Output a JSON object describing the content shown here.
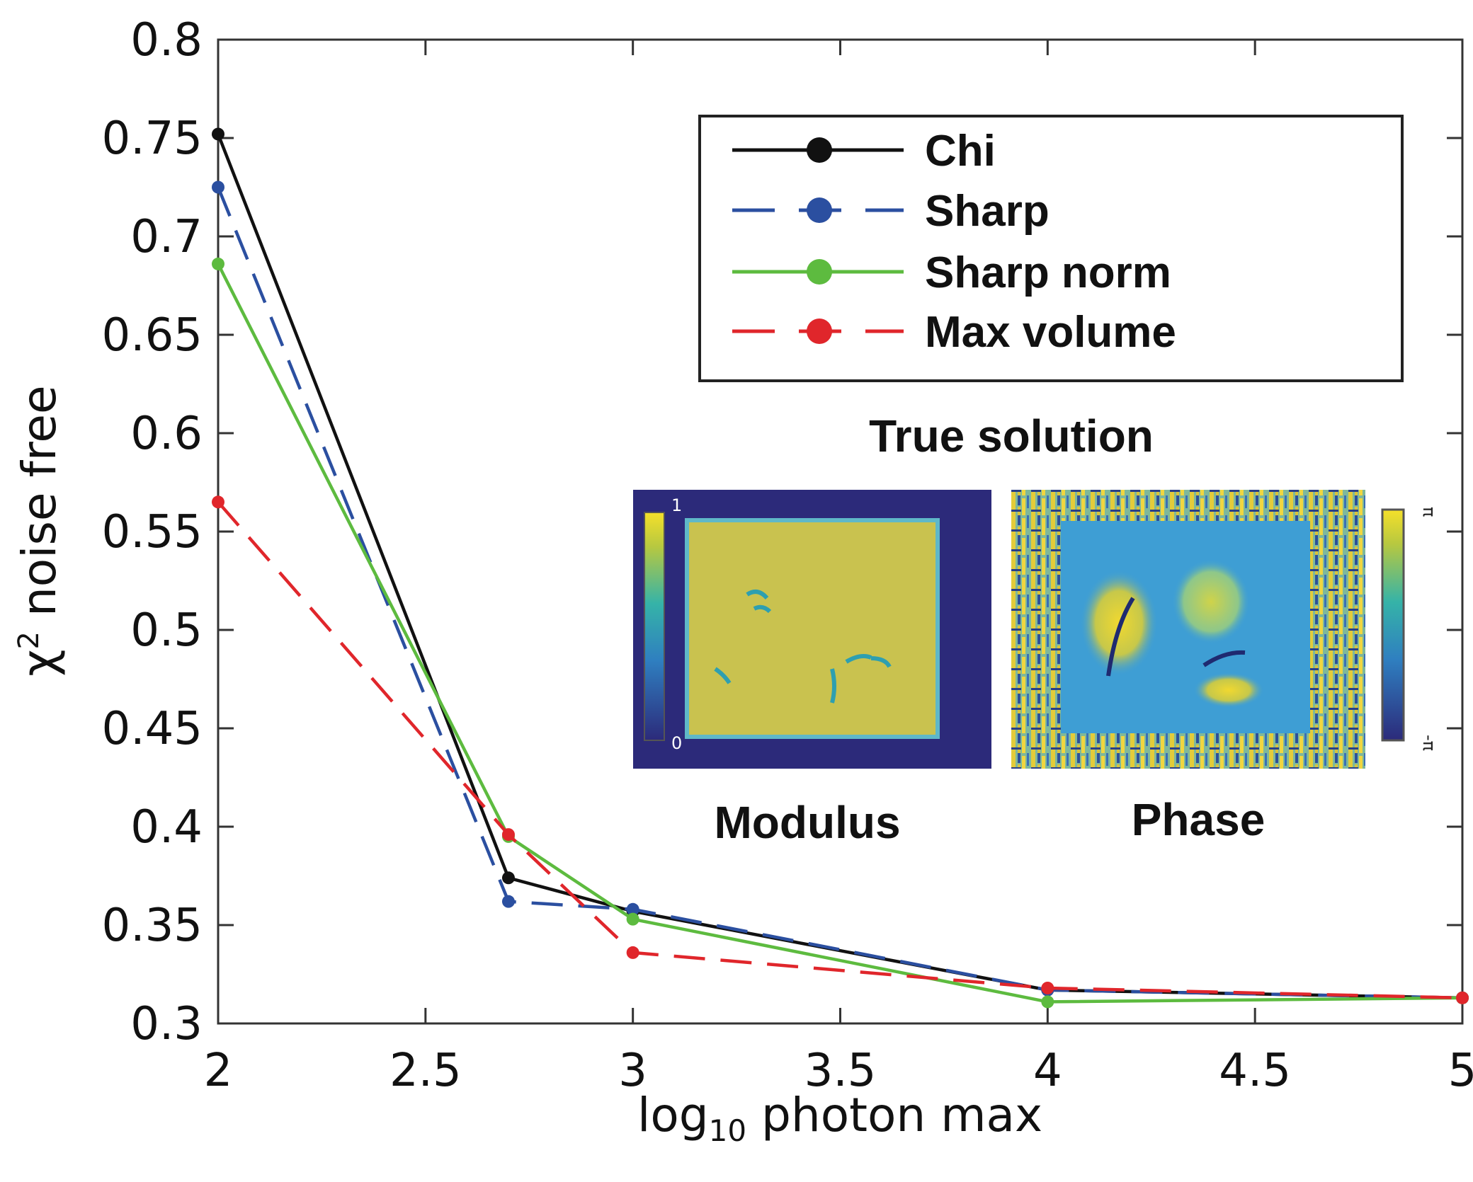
{
  "chart_data": {
    "type": "line",
    "xlabel": {
      "base": "log",
      "sub": "10",
      "rest": " photon max"
    },
    "ylabel": {
      "sym": "χ",
      "sup": "2",
      "rest": " noise free"
    },
    "xlim": [
      2,
      5
    ],
    "ylim": [
      0.3,
      0.8
    ],
    "xticks": [
      2,
      2.5,
      3,
      3.5,
      4,
      4.5,
      5
    ],
    "yticks": [
      0.3,
      0.35,
      0.4,
      0.45,
      0.5,
      0.55,
      0.6,
      0.65,
      0.7,
      0.75,
      0.8
    ],
    "xtick_labels": [
      "2",
      "2.5",
      "3",
      "3.5",
      "4",
      "4.5",
      "5"
    ],
    "ytick_labels": [
      "0.3",
      "0.35",
      "0.4",
      "0.45",
      "0.5",
      "0.55",
      "0.6",
      "0.65",
      "0.7",
      "0.75",
      "0.8"
    ],
    "grid": false,
    "legend_position": "top-right",
    "series": [
      {
        "name": "Chi",
        "color": "#111111",
        "dash": "solid",
        "x": [
          2,
          2.7,
          3,
          4,
          5
        ],
        "y": [
          0.752,
          0.374,
          0.357,
          0.317,
          0.313
        ]
      },
      {
        "name": "Sharp",
        "color": "#2B4FA0",
        "dash": "dashed",
        "x": [
          2,
          2.7,
          3,
          4,
          5
        ],
        "y": [
          0.725,
          0.362,
          0.358,
          0.317,
          0.313
        ]
      },
      {
        "name": "Sharp norm",
        "color": "#5DBB3F",
        "dash": "solid",
        "x": [
          2,
          2.7,
          3,
          4,
          5
        ],
        "y": [
          0.686,
          0.395,
          0.353,
          0.311,
          0.313
        ]
      },
      {
        "name": "Max volume",
        "color": "#E0262B",
        "dash": "dashed",
        "x": [
          2,
          2.7,
          3,
          4,
          5
        ],
        "y": [
          0.565,
          0.396,
          0.336,
          0.318,
          0.313
        ]
      }
    ]
  },
  "inset": {
    "title": "True solution",
    "modulus_label": "Modulus",
    "phase_label": "Phase",
    "modulus_cbar_max": "1",
    "modulus_cbar_min": "0",
    "phase_cbar_max": "π",
    "phase_cbar_min": "-π",
    "colors": {
      "dark": "#2C2A7A",
      "yellow": "#D9C64A",
      "teal": "#2E9FB0",
      "mid": "#5FB8C8"
    }
  }
}
